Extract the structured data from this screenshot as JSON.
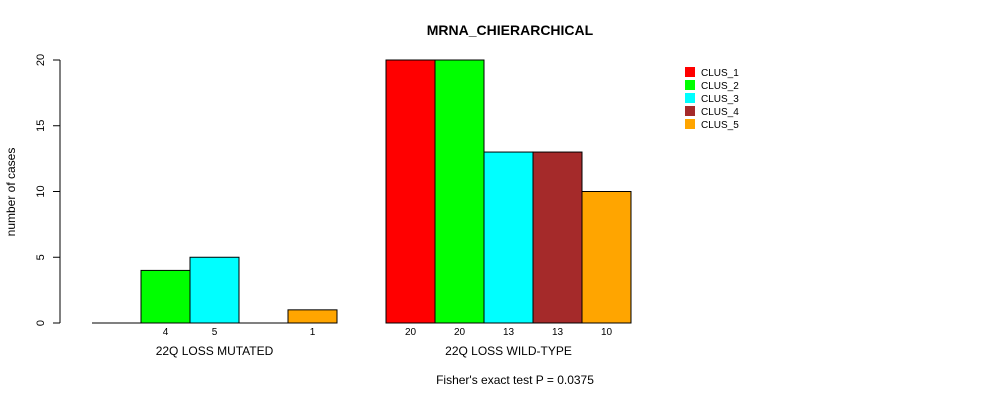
{
  "chart_data": {
    "type": "bar",
    "title": "MRNA_CHIERARCHICAL",
    "xlabel": "",
    "ylabel": "number of cases",
    "ylim": [
      0,
      20
    ],
    "yticks": [
      "0",
      "5",
      "10",
      "15",
      "20"
    ],
    "categories": [
      "22Q LOSS MUTATED",
      "22Q LOSS WILD-TYPE"
    ],
    "series": [
      {
        "name": "CLUS_1",
        "color": "#ff0000",
        "values": [
          0,
          20
        ]
      },
      {
        "name": "CLUS_2",
        "color": "#00ff00",
        "values": [
          4,
          20
        ]
      },
      {
        "name": "CLUS_3",
        "color": "#00ffff",
        "values": [
          5,
          13
        ]
      },
      {
        "name": "CLUS_4",
        "color": "#a52a2a",
        "values": [
          0,
          13
        ]
      },
      {
        "name": "CLUS_5",
        "color": "#ffa500",
        "values": [
          1,
          10
        ]
      }
    ],
    "legend_position": "top-right",
    "footnote": "Fisher's exact test P = 0.0375"
  }
}
